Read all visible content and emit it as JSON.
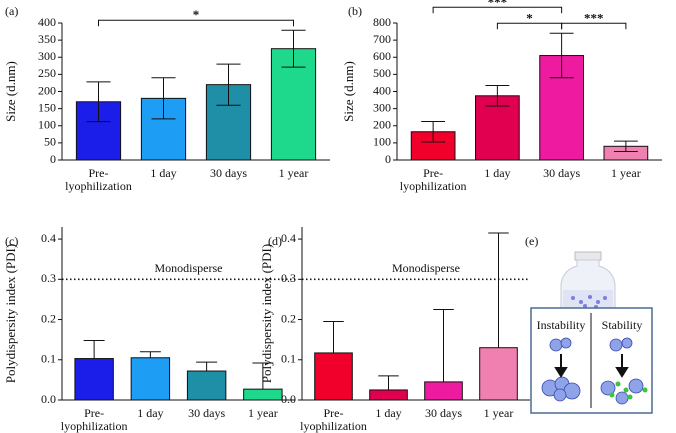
{
  "chart_data": [
    {
      "type": "bar",
      "panel": "(a)",
      "ylabel": "Size (d.nm)",
      "categories": [
        "Pre-lyophilization",
        "1 day",
        "30 days",
        "1 year"
      ],
      "values": [
        170,
        180,
        220,
        325
      ],
      "error": [
        58,
        60,
        60,
        54
      ],
      "error_direction": "both",
      "colors": [
        "#1a1ee8",
        "#1e9df5",
        "#1e8fa6",
        "#1ed98c"
      ],
      "ylim": [
        0,
        400
      ],
      "yticks": [
        0,
        50,
        100,
        150,
        200,
        250,
        300,
        350,
        400
      ],
      "significance": [
        {
          "between": [
            "Pre-lyophilization",
            "1 year"
          ],
          "label": "*"
        }
      ]
    },
    {
      "type": "bar",
      "panel": "(b)",
      "ylabel": "Size (d.nm)",
      "categories": [
        "Pre-lyophilization",
        "1 day",
        "30 days",
        "1 year"
      ],
      "values": [
        165,
        375,
        610,
        80
      ],
      "error": [
        60,
        60,
        130,
        30
      ],
      "error_direction": "both",
      "colors": [
        "#f0002a",
        "#e0004f",
        "#ee1aa0",
        "#f080b0"
      ],
      "ylim": [
        0,
        800
      ],
      "yticks": [
        0,
        100,
        200,
        300,
        400,
        500,
        600,
        700,
        800
      ],
      "significance": [
        {
          "between": [
            "1 day",
            "30 days"
          ],
          "label": "*"
        },
        {
          "between": [
            "30 days",
            "1 year"
          ],
          "label": "***"
        },
        {
          "between": [
            "Pre-lyophilization",
            "30 days"
          ],
          "label": "***"
        }
      ]
    },
    {
      "type": "bar",
      "panel": "(c)",
      "ylabel": "Polydispersity index (PDI)",
      "categories": [
        "Pre-lyophilization",
        "1 day",
        "30 days",
        "1 year"
      ],
      "values": [
        0.103,
        0.105,
        0.072,
        0.027
      ],
      "error": [
        0.045,
        0.015,
        0.022,
        0.065
      ],
      "error_direction": "up",
      "colors": [
        "#1a1ee8",
        "#1e9df5",
        "#1e8fa6",
        "#1ed98c"
      ],
      "ylim": [
        0,
        0.43
      ],
      "yticks": [
        {
          "value": 0,
          "label": "0.0"
        },
        0.1,
        0.2,
        0.3,
        0.4
      ],
      "reference_line": {
        "value": 0.3,
        "label": "Monodisperse"
      }
    },
    {
      "type": "bar",
      "panel": "(d)",
      "ylabel": "Polydispersity index (PDI)",
      "categories": [
        "Pre-lyophilization",
        "1 day",
        "30 days",
        "1 year"
      ],
      "values": [
        0.117,
        0.025,
        0.045,
        0.13
      ],
      "error": [
        0.078,
        0.035,
        0.18,
        0.285
      ],
      "error_direction": "up",
      "colors": [
        "#f0002a",
        "#e0004f",
        "#ee1aa0",
        "#f080b0"
      ],
      "ylim": [
        0,
        0.43
      ],
      "yticks": [
        {
          "value": 0,
          "label": "0.0"
        },
        0.1,
        0.2,
        0.3,
        0.4
      ],
      "reference_line": {
        "value": 0.3,
        "label": "Monodisperse"
      }
    }
  ],
  "diagram": {
    "panel": "(e)",
    "left": "Instability",
    "right": "Stability"
  }
}
